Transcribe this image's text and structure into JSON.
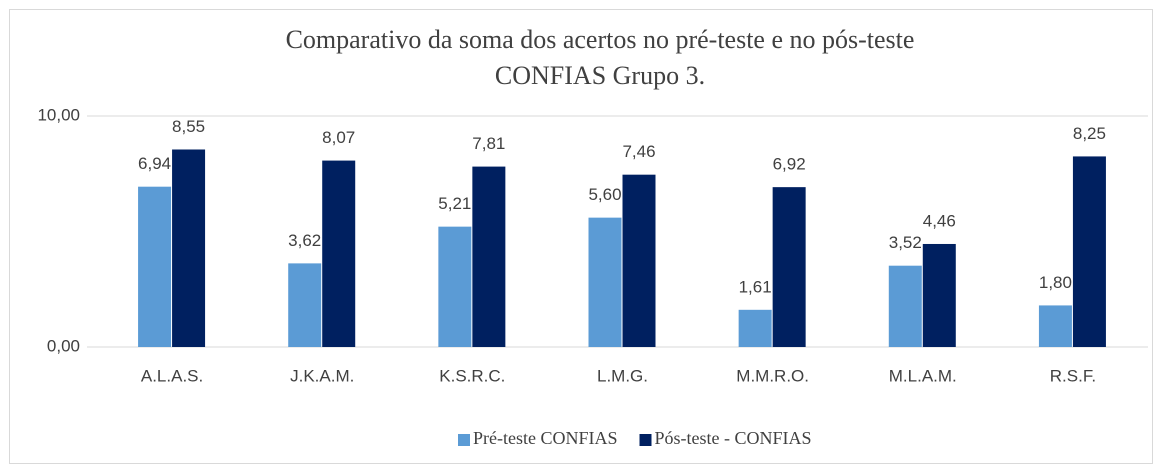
{
  "chart_data": {
    "type": "bar",
    "title": [
      "Comparativo da soma dos acertos no  pré-teste e no pós-teste",
      "CONFIAS Grupo 3."
    ],
    "categories": [
      "A.L.A.S.",
      "J.K.A.M.",
      "K.S.R.C.",
      "L.M.G.",
      "M.M.R.O.",
      "M.L.A.M.",
      "R.S.F."
    ],
    "series": [
      {
        "name": "Pré-teste CONFIAS",
        "color": "#5b9bd5",
        "values": [
          6.94,
          3.62,
          5.21,
          5.6,
          1.61,
          3.52,
          1.8
        ],
        "value_labels": [
          "6,94",
          "3,62",
          "5,21",
          "5,60",
          "1,61",
          "3,52",
          "1,80"
        ]
      },
      {
        "name": "Pós-teste - CONFIAS",
        "color": "#002060",
        "values": [
          8.55,
          8.07,
          7.81,
          7.46,
          6.92,
          4.46,
          8.25
        ],
        "value_labels": [
          "8,55",
          "8,07",
          "7,81",
          "7,46",
          "6,92",
          "4,46",
          "8,25"
        ]
      }
    ],
    "ylim": [
      0,
      10
    ],
    "yticks": [
      {
        "value": 0,
        "label": "0,00"
      },
      {
        "value": 10,
        "label": "10,00"
      }
    ],
    "grid": true,
    "legend": "bottom"
  }
}
